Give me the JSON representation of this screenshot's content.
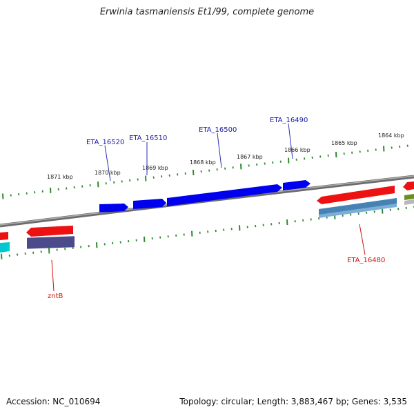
{
  "title": "Erwinia tasmaniensis Et1/99, complete genome",
  "footer": {
    "accession": "Accession: NC_010694",
    "summary": "Topology: circular; Length: 3,883,467 bp; Genes: 3,535"
  },
  "scale_labels": [
    "1871 kbp",
    "1870 kbp",
    "1869 kbp",
    "1868 kbp",
    "1867 kbp",
    "1866 kbp",
    "1865 kbp",
    "1864 kbp"
  ],
  "gene_labels": {
    "forward": [
      "ETA_16520",
      "ETA_16510",
      "ETA_16500",
      "ETA_16490"
    ],
    "reverse": [
      "ETA_16480",
      "zntB"
    ]
  },
  "colors": {
    "backbone": "#888888",
    "tick": "#2f8a2f",
    "forward_gene": "#0000ee",
    "forward_label": "#1a1aa8",
    "reverse_gene": "#ee1111",
    "reverse_label": "#cc1111",
    "purple_block": "#4b4b8c",
    "steel_block": "#4682b4",
    "cyan_block": "#00c8d0",
    "olive_block": "#6b8e23"
  }
}
